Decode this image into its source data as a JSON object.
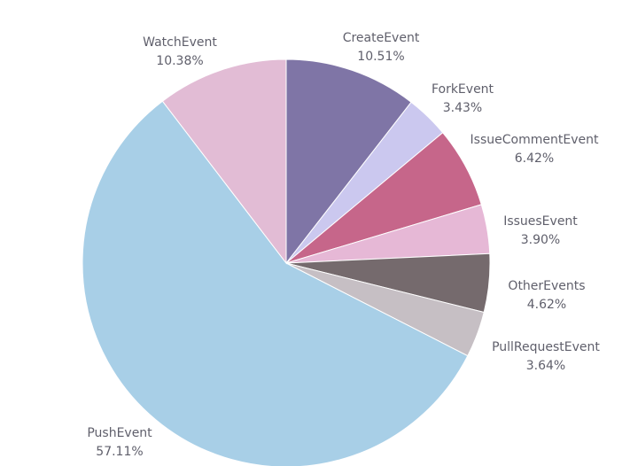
{
  "chart_data": {
    "type": "pie",
    "title": "",
    "slices": [
      {
        "label": "CreateEvent",
        "value": 10.51,
        "display": "10.51%",
        "color": "#7f75a6"
      },
      {
        "label": "ForkEvent",
        "value": 3.43,
        "display": "3.43%",
        "color": "#cbc8ef"
      },
      {
        "label": "IssueCommentEvent",
        "value": 6.42,
        "display": "6.42%",
        "color": "#c6668a"
      },
      {
        "label": "IssuesEvent",
        "value": 3.9,
        "display": "3.90%",
        "color": "#e6b8d6"
      },
      {
        "label": "OtherEvents",
        "value": 4.62,
        "display": "4.62%",
        "color": "#756a6d"
      },
      {
        "label": "PullRequestEvent",
        "value": 3.64,
        "display": "3.64%",
        "color": "#c6bfc4"
      },
      {
        "label": "PushEvent",
        "value": 57.11,
        "display": "57.11%",
        "color": "#a8cfe7"
      },
      {
        "label": "WatchEvent",
        "value": 10.38,
        "display": "10.38%",
        "color": "#e2bcd5"
      }
    ]
  }
}
